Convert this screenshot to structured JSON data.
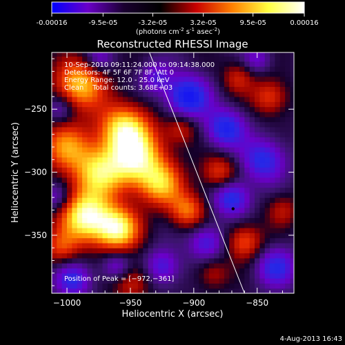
{
  "colorbar": {
    "tick_labels": [
      "-0.00016",
      "-9.5e-05",
      "-3.2e-05",
      "3.2e-05",
      "9.5e-05",
      "0.00016"
    ],
    "tick_values": [
      -0.00016,
      -9.5e-05,
      -3.2e-05,
      3.2e-05,
      9.5e-05,
      0.00016
    ],
    "units_main": "(photons cm",
    "units_exp1": "-2",
    "units_mid": " s",
    "units_exp2": "-1",
    "units_mid2": " asec",
    "units_exp3": "-2",
    "units_end": ")",
    "range": [
      -0.00016,
      0.00016
    ],
    "colors": [
      "#0000ff",
      "#6a00c8",
      "#1a0030",
      "#000000",
      "#c80000",
      "#ff8000",
      "#ffff40",
      "#ffffff"
    ]
  },
  "chart_data": {
    "type": "heatmap",
    "title": "Reconstructed RHESSI Image",
    "xlabel": "Heliocentric X (arcsec)",
    "ylabel": "Heliocentric Y (arcsec)",
    "x_ticks": [
      -1000,
      -950,
      -900,
      -850
    ],
    "y_ticks": [
      -250,
      -300,
      -350
    ],
    "x_tick_labels": [
      "−1000",
      "−950",
      "−900",
      "−850"
    ],
    "y_tick_labels": [
      "−250",
      "−300",
      "−350"
    ],
    "xlim": [
      -1012,
      -821
    ],
    "ylim": [
      -396,
      -205
    ],
    "annotations": [
      "10-Sep-2010 09:11:24.000 to 09:14:38.000",
      "Detectors: 4F 5F 6F 7F 8F, Att 0",
      "Energy Range: 12.0 - 25.0 keV",
      "Clean    Total counts: 3.68E+03"
    ],
    "peak_label": "Position of Peak = [−972,−361]",
    "peak": [
      -972,
      -361
    ],
    "marked_point": [
      -869,
      -329
    ],
    "limb_line": [
      [
        -935,
        -205
      ],
      [
        -860,
        -396
      ]
    ],
    "grid": false
  },
  "footer": {
    "date": "4-Aug-2013 16:43"
  }
}
